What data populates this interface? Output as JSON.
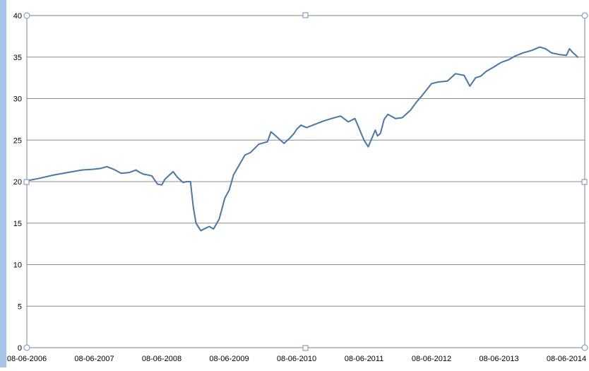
{
  "chart_data": {
    "type": "line",
    "title": "",
    "xlabel": "",
    "ylabel": "",
    "ylim": [
      0,
      40
    ],
    "grid": true,
    "y_ticks": [
      "0",
      "5",
      "10",
      "15",
      "20",
      "25",
      "30",
      "35",
      "40"
    ],
    "x_tick_labels": [
      "08-06-2006",
      "08-06-2007",
      "08-06-2008",
      "08-06-2009",
      "08-06-2010",
      "08-06-2011",
      "08-06-2012",
      "08-06-2013",
      "08-06-2014"
    ],
    "series": [
      {
        "color": "#4a76a8",
        "x": [
          "2006-06-08",
          "2006-08-15",
          "2006-11-01",
          "2007-01-15",
          "2007-04-01",
          "2007-06-08",
          "2007-07-15",
          "2007-08-15",
          "2007-09-20",
          "2007-11-01",
          "2007-12-15",
          "2008-01-20",
          "2008-02-10",
          "2008-03-01",
          "2008-04-15",
          "2008-05-15",
          "2008-06-08",
          "2008-06-25",
          "2008-08-08",
          "2008-09-01",
          "2008-10-01",
          "2008-10-20",
          "2008-11-10",
          "2008-11-25",
          "2008-12-10",
          "2009-01-05",
          "2009-02-01",
          "2009-02-20",
          "2009-03-15",
          "2009-04-15",
          "2009-05-15",
          "2009-06-08",
          "2009-07-01",
          "2009-08-01",
          "2009-09-01",
          "2009-10-01",
          "2009-11-15",
          "2010-01-01",
          "2010-01-20",
          "2010-02-15",
          "2010-04-01",
          "2010-05-05",
          "2010-05-25",
          "2010-06-08",
          "2010-07-01",
          "2010-08-01",
          "2010-09-15",
          "2010-11-01",
          "2010-12-15",
          "2011-02-01",
          "2011-03-15",
          "2011-04-20",
          "2011-06-08",
          "2011-07-01",
          "2011-08-08",
          "2011-08-20",
          "2011-09-05",
          "2011-09-25",
          "2011-10-15",
          "2011-11-25",
          "2012-01-01",
          "2012-02-15",
          "2012-03-15",
          "2012-04-15",
          "2012-06-08",
          "2012-07-15",
          "2012-09-01",
          "2012-10-15",
          "2012-12-01",
          "2013-01-01",
          "2013-02-01",
          "2013-03-01",
          "2013-04-01",
          "2013-05-10",
          "2013-06-08",
          "2013-06-25",
          "2013-08-01",
          "2013-09-01",
          "2013-10-15",
          "2013-12-01",
          "2014-01-15",
          "2014-02-15",
          "2014-03-20",
          "2014-05-01",
          "2014-06-08",
          "2014-06-25",
          "2014-07-10",
          "2014-07-25",
          "2014-08-08"
        ],
        "y": [
          20.1,
          20.4,
          20.8,
          21.1,
          21.4,
          21.5,
          21.6,
          21.8,
          21.5,
          21.0,
          21.1,
          21.4,
          21.1,
          20.9,
          20.7,
          19.7,
          19.6,
          20.3,
          21.2,
          20.5,
          19.9,
          20.0,
          20.0,
          17.0,
          15.0,
          14.1,
          14.4,
          14.6,
          14.3,
          15.5,
          18.0,
          19.0,
          20.8,
          22.0,
          23.2,
          23.5,
          24.5,
          24.8,
          26.0,
          25.5,
          24.6,
          25.3,
          25.8,
          26.3,
          26.8,
          26.5,
          26.9,
          27.3,
          27.6,
          27.9,
          27.2,
          27.6,
          25.0,
          24.2,
          26.2,
          25.5,
          25.8,
          27.5,
          28.1,
          27.6,
          27.7,
          28.6,
          29.5,
          30.3,
          31.8,
          32.0,
          32.1,
          33.0,
          32.8,
          31.5,
          32.5,
          32.7,
          33.3,
          33.8,
          34.2,
          34.4,
          34.7,
          35.1,
          35.5,
          35.8,
          36.2,
          36.0,
          35.5,
          35.3,
          35.2,
          36.0,
          35.6,
          35.3,
          35.0
        ]
      }
    ]
  }
}
